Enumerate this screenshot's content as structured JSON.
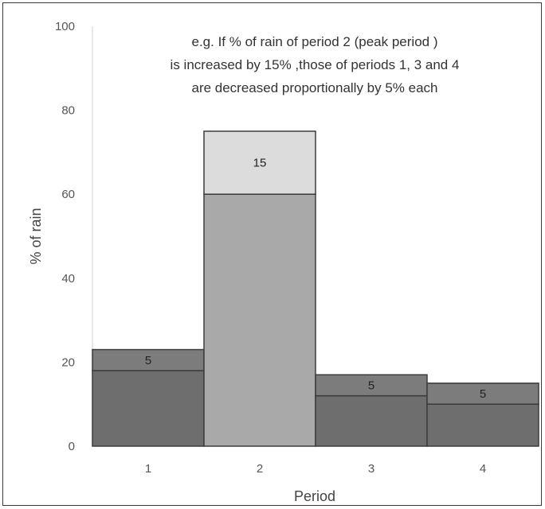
{
  "chart_data": {
    "type": "bar",
    "categories": [
      "1",
      "2",
      "3",
      "4"
    ],
    "xlabel": "Period",
    "ylabel": "% of rain",
    "ylim": [
      0,
      100
    ],
    "yticks": [
      "0",
      "20",
      "40",
      "60",
      "80",
      "100"
    ],
    "grid": false,
    "series": [
      {
        "values": [
          18,
          60,
          12,
          10
        ]
      },
      {
        "values": [
          5,
          15,
          5,
          5
        ]
      }
    ],
    "data_labels": [
      "5",
      "15",
      "5",
      "5"
    ],
    "annotation_lines": [
      "e.g. If % of rain of period 2 (peak period )",
      "is increased by 15% ,those of periods 1, 3 and 4",
      "are decreased proportionally by 5% each"
    ],
    "colors": {
      "base_dark": "#6e6e6e",
      "base_peak": "#a9a9a9",
      "inc_dark": "#7c7c7c",
      "inc_peak": "#dcdcdc",
      "outline": "#3c3c3c"
    }
  }
}
